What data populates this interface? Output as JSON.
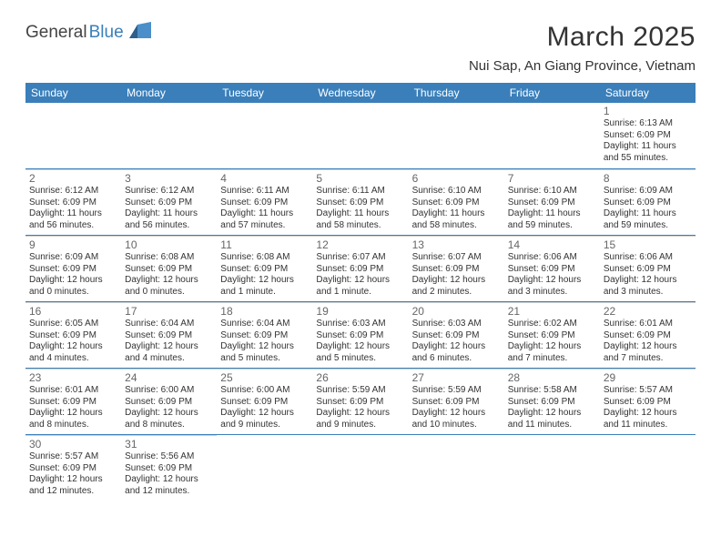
{
  "logo": {
    "text1": "General",
    "text2": "Blue"
  },
  "title": "March 2025",
  "location": "Nui Sap, An Giang Province, Vietnam",
  "header_bg": "#3a7fba",
  "day_names": [
    "Sunday",
    "Monday",
    "Tuesday",
    "Wednesday",
    "Thursday",
    "Friday",
    "Saturday"
  ],
  "weeks": [
    [
      null,
      null,
      null,
      null,
      null,
      null,
      {
        "n": "1",
        "sr": "Sunrise: 6:13 AM",
        "ss": "Sunset: 6:09 PM",
        "dl": "Daylight: 11 hours and 55 minutes."
      }
    ],
    [
      {
        "n": "2",
        "sr": "Sunrise: 6:12 AM",
        "ss": "Sunset: 6:09 PM",
        "dl": "Daylight: 11 hours and 56 minutes."
      },
      {
        "n": "3",
        "sr": "Sunrise: 6:12 AM",
        "ss": "Sunset: 6:09 PM",
        "dl": "Daylight: 11 hours and 56 minutes."
      },
      {
        "n": "4",
        "sr": "Sunrise: 6:11 AM",
        "ss": "Sunset: 6:09 PM",
        "dl": "Daylight: 11 hours and 57 minutes."
      },
      {
        "n": "5",
        "sr": "Sunrise: 6:11 AM",
        "ss": "Sunset: 6:09 PM",
        "dl": "Daylight: 11 hours and 58 minutes."
      },
      {
        "n": "6",
        "sr": "Sunrise: 6:10 AM",
        "ss": "Sunset: 6:09 PM",
        "dl": "Daylight: 11 hours and 58 minutes."
      },
      {
        "n": "7",
        "sr": "Sunrise: 6:10 AM",
        "ss": "Sunset: 6:09 PM",
        "dl": "Daylight: 11 hours and 59 minutes."
      },
      {
        "n": "8",
        "sr": "Sunrise: 6:09 AM",
        "ss": "Sunset: 6:09 PM",
        "dl": "Daylight: 11 hours and 59 minutes."
      }
    ],
    [
      {
        "n": "9",
        "sr": "Sunrise: 6:09 AM",
        "ss": "Sunset: 6:09 PM",
        "dl": "Daylight: 12 hours and 0 minutes."
      },
      {
        "n": "10",
        "sr": "Sunrise: 6:08 AM",
        "ss": "Sunset: 6:09 PM",
        "dl": "Daylight: 12 hours and 0 minutes."
      },
      {
        "n": "11",
        "sr": "Sunrise: 6:08 AM",
        "ss": "Sunset: 6:09 PM",
        "dl": "Daylight: 12 hours and 1 minute."
      },
      {
        "n": "12",
        "sr": "Sunrise: 6:07 AM",
        "ss": "Sunset: 6:09 PM",
        "dl": "Daylight: 12 hours and 1 minute."
      },
      {
        "n": "13",
        "sr": "Sunrise: 6:07 AM",
        "ss": "Sunset: 6:09 PM",
        "dl": "Daylight: 12 hours and 2 minutes."
      },
      {
        "n": "14",
        "sr": "Sunrise: 6:06 AM",
        "ss": "Sunset: 6:09 PM",
        "dl": "Daylight: 12 hours and 3 minutes."
      },
      {
        "n": "15",
        "sr": "Sunrise: 6:06 AM",
        "ss": "Sunset: 6:09 PM",
        "dl": "Daylight: 12 hours and 3 minutes."
      }
    ],
    [
      {
        "n": "16",
        "sr": "Sunrise: 6:05 AM",
        "ss": "Sunset: 6:09 PM",
        "dl": "Daylight: 12 hours and 4 minutes."
      },
      {
        "n": "17",
        "sr": "Sunrise: 6:04 AM",
        "ss": "Sunset: 6:09 PM",
        "dl": "Daylight: 12 hours and 4 minutes."
      },
      {
        "n": "18",
        "sr": "Sunrise: 6:04 AM",
        "ss": "Sunset: 6:09 PM",
        "dl": "Daylight: 12 hours and 5 minutes."
      },
      {
        "n": "19",
        "sr": "Sunrise: 6:03 AM",
        "ss": "Sunset: 6:09 PM",
        "dl": "Daylight: 12 hours and 5 minutes."
      },
      {
        "n": "20",
        "sr": "Sunrise: 6:03 AM",
        "ss": "Sunset: 6:09 PM",
        "dl": "Daylight: 12 hours and 6 minutes."
      },
      {
        "n": "21",
        "sr": "Sunrise: 6:02 AM",
        "ss": "Sunset: 6:09 PM",
        "dl": "Daylight: 12 hours and 7 minutes."
      },
      {
        "n": "22",
        "sr": "Sunrise: 6:01 AM",
        "ss": "Sunset: 6:09 PM",
        "dl": "Daylight: 12 hours and 7 minutes."
      }
    ],
    [
      {
        "n": "23",
        "sr": "Sunrise: 6:01 AM",
        "ss": "Sunset: 6:09 PM",
        "dl": "Daylight: 12 hours and 8 minutes."
      },
      {
        "n": "24",
        "sr": "Sunrise: 6:00 AM",
        "ss": "Sunset: 6:09 PM",
        "dl": "Daylight: 12 hours and 8 minutes."
      },
      {
        "n": "25",
        "sr": "Sunrise: 6:00 AM",
        "ss": "Sunset: 6:09 PM",
        "dl": "Daylight: 12 hours and 9 minutes."
      },
      {
        "n": "26",
        "sr": "Sunrise: 5:59 AM",
        "ss": "Sunset: 6:09 PM",
        "dl": "Daylight: 12 hours and 9 minutes."
      },
      {
        "n": "27",
        "sr": "Sunrise: 5:59 AM",
        "ss": "Sunset: 6:09 PM",
        "dl": "Daylight: 12 hours and 10 minutes."
      },
      {
        "n": "28",
        "sr": "Sunrise: 5:58 AM",
        "ss": "Sunset: 6:09 PM",
        "dl": "Daylight: 12 hours and 11 minutes."
      },
      {
        "n": "29",
        "sr": "Sunrise: 5:57 AM",
        "ss": "Sunset: 6:09 PM",
        "dl": "Daylight: 12 hours and 11 minutes."
      }
    ],
    [
      {
        "n": "30",
        "sr": "Sunrise: 5:57 AM",
        "ss": "Sunset: 6:09 PM",
        "dl": "Daylight: 12 hours and 12 minutes."
      },
      {
        "n": "31",
        "sr": "Sunrise: 5:56 AM",
        "ss": "Sunset: 6:09 PM",
        "dl": "Daylight: 12 hours and 12 minutes."
      },
      null,
      null,
      null,
      null,
      null
    ]
  ]
}
